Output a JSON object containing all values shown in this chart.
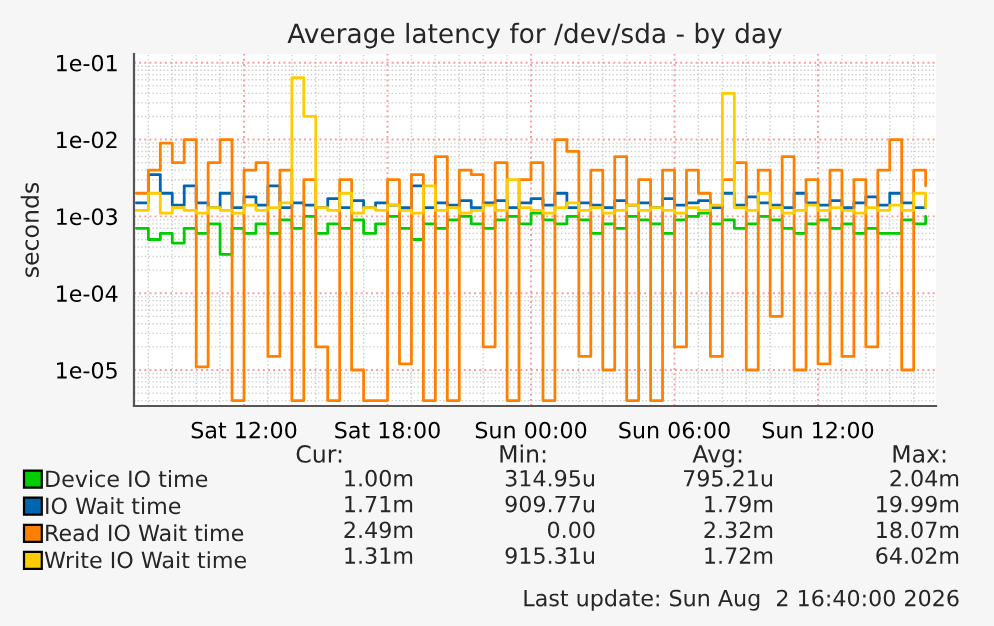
{
  "chart_data": {
    "type": "step",
    "title": "Average latency for /dev/sda - by day",
    "ylabel": "seconds",
    "log": "y",
    "ylim": [
      3.4e-06,
      0.13
    ],
    "yticks": [
      {
        "value": 1e-05,
        "label": "1e-05"
      },
      {
        "value": 0.0001,
        "label": "1e-04"
      },
      {
        "value": 0.001,
        "label": "1e-03"
      },
      {
        "value": 0.01,
        "label": "1e-02"
      },
      {
        "value": 0.1,
        "label": "1e-01"
      }
    ],
    "xlim": [
      "2026-08-01T07:24",
      "2026-08-02T16:56"
    ],
    "xticks": [
      {
        "value": "2026-08-01T12:00",
        "label": "Sat 12:00"
      },
      {
        "value": "2026-08-01T18:00",
        "label": "Sat 18:00"
      },
      {
        "value": "2026-08-02T00:00",
        "label": "Sun 00:00"
      },
      {
        "value": "2026-08-02T06:00",
        "label": "Sun 06:00"
      },
      {
        "value": "2026-08-02T12:00",
        "label": "Sun 12:00"
      }
    ],
    "grid": true,
    "legend": "bottom",
    "x": [
      "2026-08-01T07:30",
      "2026-08-01T08:00",
      "2026-08-01T08:30",
      "2026-08-01T09:00",
      "2026-08-01T09:30",
      "2026-08-01T10:00",
      "2026-08-01T10:30",
      "2026-08-01T11:00",
      "2026-08-01T11:30",
      "2026-08-01T12:00",
      "2026-08-01T12:30",
      "2026-08-01T13:00",
      "2026-08-01T13:30",
      "2026-08-01T14:00",
      "2026-08-01T14:30",
      "2026-08-01T15:00",
      "2026-08-01T15:30",
      "2026-08-01T16:00",
      "2026-08-01T16:30",
      "2026-08-01T17:00",
      "2026-08-01T17:30",
      "2026-08-01T18:00",
      "2026-08-01T18:30",
      "2026-08-01T19:00",
      "2026-08-01T19:30",
      "2026-08-01T20:00",
      "2026-08-01T20:30",
      "2026-08-01T21:00",
      "2026-08-01T21:30",
      "2026-08-01T22:00",
      "2026-08-01T22:30",
      "2026-08-01T23:00",
      "2026-08-01T23:30",
      "2026-08-02T00:00",
      "2026-08-02T00:30",
      "2026-08-02T01:00",
      "2026-08-02T01:30",
      "2026-08-02T02:00",
      "2026-08-02T02:30",
      "2026-08-02T03:00",
      "2026-08-02T03:30",
      "2026-08-02T04:00",
      "2026-08-02T04:30",
      "2026-08-02T05:00",
      "2026-08-02T05:30",
      "2026-08-02T06:00",
      "2026-08-02T06:30",
      "2026-08-02T07:00",
      "2026-08-02T07:30",
      "2026-08-02T08:00",
      "2026-08-02T08:30",
      "2026-08-02T09:00",
      "2026-08-02T09:30",
      "2026-08-02T10:00",
      "2026-08-02T10:30",
      "2026-08-02T11:00",
      "2026-08-02T11:30",
      "2026-08-02T12:00",
      "2026-08-02T12:30",
      "2026-08-02T13:00",
      "2026-08-02T13:30",
      "2026-08-02T14:00",
      "2026-08-02T14:30",
      "2026-08-02T15:00",
      "2026-08-02T15:30",
      "2026-08-02T16:00",
      "2026-08-02T16:30"
    ],
    "series": [
      {
        "name": "Device IO time",
        "color": "#00cc00",
        "values": [
          0.0007,
          0.0005,
          0.0006,
          0.00045,
          0.0007,
          0.0006,
          0.0008,
          0.00032,
          0.0007,
          0.0006,
          0.0008,
          0.0006,
          0.0009,
          0.0007,
          0.001,
          0.0006,
          0.0008,
          0.0007,
          0.0009,
          0.0006,
          0.0008,
          0.001,
          0.0007,
          0.0005,
          0.0008,
          0.0007,
          0.0009,
          0.001,
          0.0008,
          0.0007,
          0.0009,
          0.001,
          0.0008,
          0.0011,
          0.0009,
          0.0008,
          0.001,
          0.0009,
          0.0006,
          0.0008,
          0.0007,
          0.001,
          0.0009,
          0.0008,
          0.0006,
          0.0009,
          0.001,
          0.0011,
          0.0008,
          0.0009,
          0.0007,
          0.0008,
          0.001,
          0.0009,
          0.0007,
          0.0006,
          0.0008,
          0.0009,
          0.0007,
          0.0008,
          0.0006,
          0.0007,
          0.0006,
          0.0006,
          0.0009,
          0.0008,
          0.001
        ]
      },
      {
        "name": "IO Wait time",
        "color": "#0066b3",
        "values": [
          0.0015,
          0.0035,
          0.002,
          0.0014,
          0.0025,
          0.0015,
          0.0013,
          0.002,
          0.0013,
          0.0018,
          0.0014,
          0.0025,
          0.0013,
          0.0015,
          0.0014,
          0.0013,
          0.0017,
          0.0013,
          0.0016,
          0.0013,
          0.0015,
          0.0014,
          0.0013,
          0.0025,
          0.0013,
          0.0015,
          0.0014,
          0.0016,
          0.0013,
          0.0015,
          0.0016,
          0.0013,
          0.0015,
          0.0017,
          0.0014,
          0.002,
          0.0013,
          0.0015,
          0.0014,
          0.0013,
          0.0016,
          0.0014,
          0.0015,
          0.0013,
          0.0017,
          0.0014,
          0.0015,
          0.0016,
          0.0013,
          0.002,
          0.0014,
          0.0018,
          0.0015,
          0.0014,
          0.0013,
          0.002,
          0.0015,
          0.0014,
          0.0016,
          0.0013,
          0.0015,
          0.0018,
          0.0014,
          0.002,
          0.0015,
          0.0013,
          0.0017
        ]
      },
      {
        "name": "Read IO Wait time",
        "color": "#ff8000",
        "values": [
          0.002,
          0.004,
          0.009,
          0.005,
          0.01,
          1.1e-05,
          0.005,
          0.01,
          4e-06,
          0.004,
          0.005,
          1.5e-05,
          0.004,
          4e-06,
          0.003,
          2e-05,
          4e-06,
          0.003,
          1e-05,
          4e-06,
          4e-06,
          0.003,
          1.2e-05,
          0.0035,
          4e-06,
          0.006,
          4e-06,
          0.004,
          0.0035,
          2e-05,
          0.005,
          4e-06,
          0.003,
          0.005,
          4e-06,
          0.01,
          0.007,
          1.5e-05,
          0.004,
          1e-05,
          0.006,
          4e-06,
          0.003,
          4e-06,
          0.004,
          2e-05,
          0.004,
          0.002,
          1.5e-05,
          0.003,
          0.005,
          1e-05,
          0.004,
          5e-05,
          0.006,
          1e-05,
          0.003,
          1.2e-05,
          0.004,
          1.5e-05,
          0.003,
          2e-05,
          0.004,
          0.01,
          1e-05,
          0.004,
          0.0025
        ]
      },
      {
        "name": "Write IO Wait time",
        "color": "#ffcc00",
        "values": [
          0.0012,
          0.002,
          0.0011,
          0.0013,
          0.0012,
          0.0011,
          0.0013,
          0.0012,
          0.0011,
          0.0014,
          0.0012,
          0.0013,
          0.0015,
          0.064,
          0.02,
          0.0013,
          0.0012,
          0.002,
          0.0011,
          0.0013,
          0.0012,
          0.0014,
          0.0012,
          0.0011,
          0.0025,
          0.0012,
          0.0013,
          0.0011,
          0.0012,
          0.0014,
          0.0012,
          0.003,
          0.0013,
          0.0012,
          0.0011,
          0.0013,
          0.0015,
          0.0012,
          0.0013,
          0.0011,
          0.0012,
          0.0014,
          0.0012,
          0.0013,
          0.0012,
          0.0011,
          0.0013,
          0.0012,
          0.0014,
          0.04,
          0.0013,
          0.0012,
          0.002,
          0.0013,
          0.0011,
          0.0012,
          0.0014,
          0.0012,
          0.0013,
          0.0012,
          0.0011,
          0.0013,
          0.0012,
          0.0014,
          0.0012,
          0.002,
          0.0013
        ]
      }
    ],
    "annotations": [
      "Cur:",
      "Min:",
      "Avg:",
      "Max:",
      "1.00m",
      "314.95u",
      "795.21u",
      "2.04m",
      "1.71m",
      "909.77u",
      "1.79m",
      "19.99m",
      "2.49m",
      "0.00",
      "2.32m",
      "18.07m",
      "1.31m",
      "915.31u",
      "1.72m",
      "64.02m",
      "Last update: Sun Aug  2 16:40:00 2026"
    ]
  }
}
